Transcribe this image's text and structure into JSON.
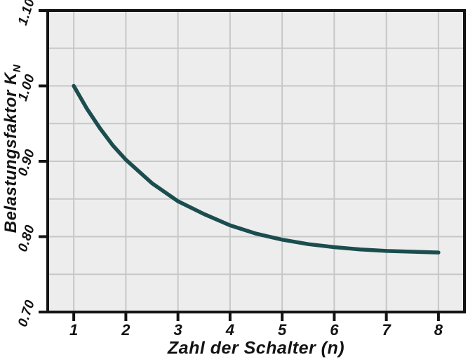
{
  "chart_data": {
    "type": "line",
    "title": "",
    "xlabel": "Zahl der Schalter (n)",
    "ylabel": "Belastungsfaktor KN",
    "x_ticks": [
      "1",
      "2",
      "3",
      "4",
      "5",
      "6",
      "7",
      "8"
    ],
    "x_tick_values": [
      1,
      2,
      3,
      4,
      5,
      6,
      7,
      8
    ],
    "y_ticks": [
      "1.10",
      "1.00",
      "0.90",
      "0.80",
      "0.70"
    ],
    "y_tick_values": [
      1.1,
      1.0,
      0.9,
      0.8,
      0.7
    ],
    "xlim": [
      0.5,
      8.5
    ],
    "ylim": [
      0.7,
      1.1
    ],
    "grid": true,
    "legend": "none",
    "x_gridlines": [
      1,
      2,
      3,
      4,
      5,
      6,
      7,
      8
    ],
    "y_gridlines": [
      0.75,
      0.8,
      0.85,
      0.9,
      0.95,
      1.0,
      1.05
    ],
    "series": [
      {
        "name": "Belastungsfaktor KN",
        "color": "#1b4d4e",
        "points": [
          [
            1,
            1.0
          ],
          [
            1.25,
            0.97
          ],
          [
            1.5,
            0.944
          ],
          [
            1.75,
            0.921
          ],
          [
            2,
            0.902
          ],
          [
            2.5,
            0.871
          ],
          [
            3,
            0.847
          ],
          [
            3.5,
            0.83
          ],
          [
            4,
            0.815
          ],
          [
            4.5,
            0.804
          ],
          [
            5,
            0.796
          ],
          [
            5.5,
            0.79
          ],
          [
            6,
            0.786
          ],
          [
            6.5,
            0.783
          ],
          [
            7,
            0.781
          ],
          [
            7.5,
            0.78
          ],
          [
            8,
            0.779
          ]
        ]
      }
    ]
  },
  "labels": {
    "y_title_text": "Belastungsfaktor ",
    "y_symbol": "K",
    "y_symbol_sub": "N"
  },
  "colors": {
    "page_bg": "#ffffff",
    "plot_bg": "#ededed",
    "grid": "#c6c8c8",
    "frame": "#131313",
    "curve": "#1b4d4e",
    "text": "#131313"
  }
}
